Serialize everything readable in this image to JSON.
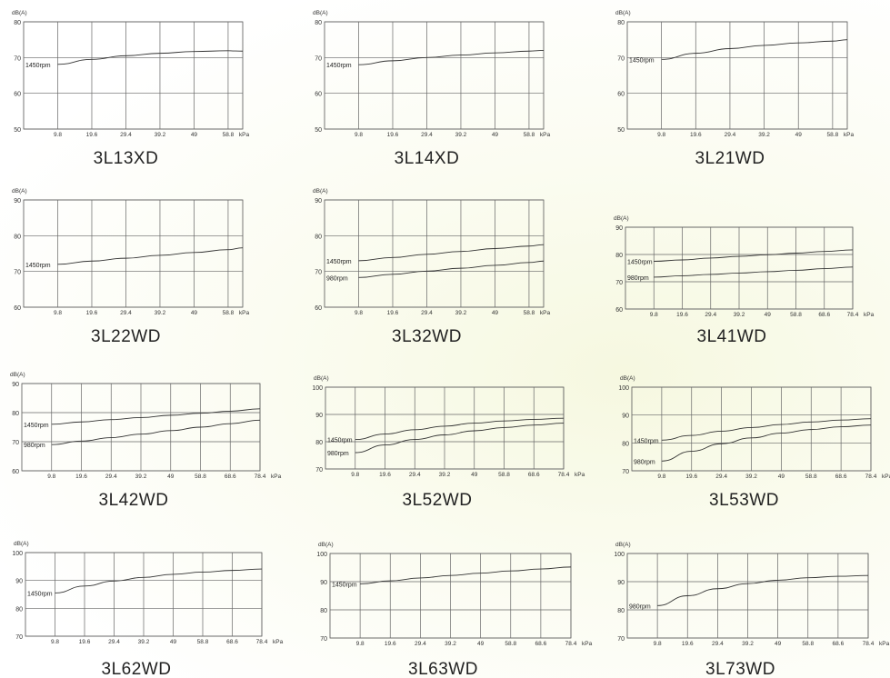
{
  "chart_data": [
    {
      "type": "line",
      "title": "3L13XD",
      "ylabel": "dB(A)",
      "xlabel": "kPa",
      "ylim": [
        50,
        80
      ],
      "yticks": [
        "80",
        "70",
        "60",
        "50"
      ],
      "x": [
        9.8,
        19.6,
        29.4,
        39.2,
        49,
        58.8
      ],
      "xticks": [
        "9.8",
        "19.6",
        "29.4",
        "39.2",
        "49",
        "58.8"
      ],
      "series": [
        {
          "name": "1450rpm",
          "x": [
            9.8,
            19.6,
            29.4,
            39.2,
            49,
            58.8,
            63
          ],
          "values": [
            68.1,
            69.5,
            70.5,
            71.2,
            71.7,
            71.9,
            71.8
          ]
        }
      ]
    },
    {
      "type": "line",
      "title": "3L14XD",
      "ylabel": "dB(A)",
      "xlabel": "kPa",
      "ylim": [
        50,
        80
      ],
      "yticks": [
        "80",
        "70",
        "60",
        "50"
      ],
      "x": [
        9.8,
        19.6,
        29.4,
        39.2,
        49,
        58.8
      ],
      "xticks": [
        "9.8",
        "19.6",
        "29.4",
        "39.2",
        "49",
        "58.8"
      ],
      "series": [
        {
          "name": "1450rpm",
          "x": [
            9.8,
            19.6,
            29.4,
            39.2,
            49,
            58.8,
            63
          ],
          "values": [
            68,
            69.1,
            70,
            70.7,
            71.3,
            71.8,
            72
          ]
        }
      ]
    },
    {
      "type": "line",
      "title": "3L21WD",
      "ylabel": "dB(A)",
      "xlabel": "kPa",
      "ylim": [
        50,
        80
      ],
      "yticks": [
        "80",
        "70",
        "60",
        "50"
      ],
      "x": [
        9.8,
        19.6,
        29.4,
        39.2,
        49,
        58.8
      ],
      "xticks": [
        "9.8",
        "19.6",
        "29.4",
        "39.2",
        "49",
        "58.8"
      ],
      "series": [
        {
          "name": "1450rpm",
          "x": [
            9.8,
            19.6,
            29.4,
            39.2,
            49,
            58.8,
            63
          ],
          "values": [
            69.5,
            71.2,
            72.5,
            73.4,
            74.1,
            74.6,
            75
          ]
        }
      ]
    },
    {
      "type": "line",
      "title": "3L22WD",
      "ylabel": "dB(A)",
      "xlabel": "kPa",
      "ylim": [
        60,
        90
      ],
      "yticks": [
        "90",
        "80",
        "70",
        "60"
      ],
      "x": [
        9.8,
        19.6,
        29.4,
        39.2,
        49,
        58.8
      ],
      "xticks": [
        "9.8",
        "19.6",
        "29.4",
        "39.2",
        "49",
        "58.8"
      ],
      "series": [
        {
          "name": "1450rpm",
          "x": [
            9.8,
            19.6,
            29.4,
            39.2,
            49,
            58.8,
            63
          ],
          "values": [
            72,
            72.9,
            73.7,
            74.5,
            75.3,
            76.1,
            76.6
          ]
        }
      ]
    },
    {
      "type": "line",
      "title": "3L32WD",
      "ylabel": "dB(A)",
      "xlabel": "kPa",
      "ylim": [
        60,
        90
      ],
      "yticks": [
        "90",
        "80",
        "70",
        "60"
      ],
      "x": [
        9.8,
        19.6,
        29.4,
        39.2,
        49,
        58.8
      ],
      "xticks": [
        "9.8",
        "19.6",
        "29.4",
        "39.2",
        "49",
        "58.8"
      ],
      "series": [
        {
          "name": "1450rpm",
          "x": [
            9.8,
            19.6,
            29.4,
            39.2,
            49,
            58.8,
            63
          ],
          "values": [
            73,
            73.9,
            74.8,
            75.6,
            76.4,
            77.1,
            77.5
          ]
        },
        {
          "name": "980rpm",
          "x": [
            9.8,
            19.6,
            29.4,
            39.2,
            49,
            58.8,
            63
          ],
          "values": [
            68.3,
            69.2,
            70.1,
            70.9,
            71.7,
            72.5,
            72.9
          ]
        }
      ]
    },
    {
      "type": "line",
      "title": "3L41WD",
      "ylabel": "dB(A)",
      "xlabel": "kPa",
      "ylim": [
        60,
        90
      ],
      "yticks": [
        "90",
        "80",
        "70",
        "60"
      ],
      "x": [
        9.8,
        19.6,
        29.4,
        39.2,
        49,
        58.8,
        68.6,
        78.4
      ],
      "xticks": [
        "9.8",
        "19.6",
        "29.4",
        "39.2",
        "49",
        "58.8",
        "68.6",
        "78.4"
      ],
      "series": [
        {
          "name": "1450rpm",
          "x": [
            9.8,
            19.6,
            29.4,
            39.2,
            49,
            58.8,
            68.6,
            78.4
          ],
          "values": [
            77.5,
            78,
            78.7,
            79.3,
            79.9,
            80.5,
            81.1,
            81.7
          ]
        },
        {
          "name": "980rpm",
          "x": [
            9.8,
            19.6,
            29.4,
            39.2,
            49,
            58.8,
            68.6,
            78.4
          ],
          "values": [
            71.7,
            72.2,
            72.7,
            73.2,
            73.7,
            74.2,
            74.8,
            75.4
          ]
        }
      ]
    },
    {
      "type": "line",
      "title": "3L42WD",
      "ylabel": "dB(A)",
      "xlabel": "kPa",
      "ylim": [
        60,
        90
      ],
      "yticks": [
        "90",
        "80",
        "70",
        "60"
      ],
      "x": [
        9.8,
        19.6,
        29.4,
        39.2,
        49,
        58.8,
        68.6,
        78.4
      ],
      "xticks": [
        "9.8",
        "19.6",
        "29.4",
        "39.2",
        "49",
        "58.8",
        "68.6",
        "78.4"
      ],
      "series": [
        {
          "name": "1450rpm",
          "x": [
            9.8,
            19.6,
            29.4,
            39.2,
            49,
            58.8,
            68.6,
            78.4
          ],
          "values": [
            76,
            76.8,
            77.6,
            78.3,
            79.1,
            79.8,
            80.5,
            81.3
          ]
        },
        {
          "name": "980rpm",
          "x": [
            9.8,
            19.6,
            29.4,
            39.2,
            49,
            58.8,
            68.6,
            78.4
          ],
          "values": [
            69,
            70.2,
            71.4,
            72.6,
            73.8,
            75,
            76.2,
            77.4
          ]
        }
      ]
    },
    {
      "type": "line",
      "title": "3L52WD",
      "ylabel": "dB(A)",
      "xlabel": "kPa",
      "ylim": [
        70,
        100
      ],
      "yticks": [
        "100",
        "90",
        "80",
        "70"
      ],
      "x": [
        9.8,
        19.6,
        29.4,
        39.2,
        49,
        58.8,
        68.6,
        78.4
      ],
      "xticks": [
        "9.8",
        "19.6",
        "29.4",
        "39.2",
        "49",
        "58.8",
        "68.6",
        "78.4"
      ],
      "series": [
        {
          "name": "1450rpm",
          "x": [
            9.8,
            19.6,
            29.4,
            39.2,
            49,
            58.8,
            68.6,
            78.4
          ],
          "values": [
            80.8,
            82.8,
            84.4,
            85.7,
            86.8,
            87.6,
            88.2,
            88.6
          ]
        },
        {
          "name": "980rpm",
          "x": [
            9.8,
            19.6,
            29.4,
            39.2,
            49,
            58.8,
            68.6,
            78.4
          ],
          "values": [
            76,
            78.8,
            80.8,
            82.5,
            84,
            85.2,
            86.1,
            86.8
          ]
        }
      ]
    },
    {
      "type": "line",
      "title": "3L53WD",
      "ylabel": "dB(A)",
      "xlabel": "kPa",
      "ylim": [
        70,
        100
      ],
      "yticks": [
        "100",
        "90",
        "80",
        "70"
      ],
      "x": [
        9.8,
        19.6,
        29.4,
        39.2,
        49,
        58.8,
        68.6,
        78.4
      ],
      "xticks": [
        "9.8",
        "19.6",
        "29.4",
        "39.2",
        "49",
        "58.8",
        "68.6",
        "78.4"
      ],
      "series": [
        {
          "name": "1450rpm",
          "x": [
            9.8,
            19.6,
            29.4,
            39.2,
            49,
            58.8,
            68.6,
            78.4
          ],
          "values": [
            81,
            82.7,
            84.2,
            85.5,
            86.6,
            87.5,
            88.2,
            88.7
          ]
        },
        {
          "name": "980rpm",
          "x": [
            9.8,
            19.6,
            29.4,
            39.2,
            49,
            58.8,
            68.6,
            78.4
          ],
          "values": [
            73.5,
            77,
            79.7,
            81.8,
            83.5,
            84.8,
            85.8,
            86.4
          ]
        }
      ]
    },
    {
      "type": "line",
      "title": "3L62WD",
      "ylabel": "dB(A)",
      "xlabel": "kPa",
      "ylim": [
        70,
        100
      ],
      "yticks": [
        "100",
        "90",
        "80",
        "70"
      ],
      "x": [
        9.8,
        19.6,
        29.4,
        39.2,
        49,
        58.8,
        68.6,
        78.4
      ],
      "xticks": [
        "9.8",
        "19.6",
        "29.4",
        "39.2",
        "49",
        "58.8",
        "68.6",
        "78.4"
      ],
      "series": [
        {
          "name": "1450rpm",
          "x": [
            9.8,
            19.6,
            29.4,
            39.2,
            49,
            58.8,
            68.6,
            78.4
          ],
          "values": [
            85.5,
            88,
            89.8,
            91.1,
            92.2,
            93,
            93.6,
            94.1
          ]
        }
      ]
    },
    {
      "type": "line",
      "title": "3L63WD",
      "ylabel": "dB(A)",
      "xlabel": "kPa",
      "ylim": [
        70,
        100
      ],
      "yticks": [
        "100",
        "90",
        "80",
        "70"
      ],
      "x": [
        9.8,
        19.6,
        29.4,
        39.2,
        49,
        58.8,
        68.6,
        78.4
      ],
      "xticks": [
        "9.8",
        "19.6",
        "29.4",
        "39.2",
        "49",
        "58.8",
        "68.6",
        "78.4"
      ],
      "series": [
        {
          "name": "1450rpm",
          "x": [
            9.8,
            19.6,
            29.4,
            39.2,
            49,
            58.8,
            68.6,
            78.4
          ],
          "values": [
            89.2,
            90.3,
            91.3,
            92.2,
            93,
            93.8,
            94.5,
            95.2
          ]
        }
      ]
    },
    {
      "type": "line",
      "title": "3L73WD",
      "ylabel": "dB(A)",
      "xlabel": "kPa",
      "ylim": [
        70,
        100
      ],
      "yticks": [
        "100",
        "90",
        "80",
        "70"
      ],
      "x": [
        9.8,
        19.6,
        29.4,
        39.2,
        49,
        58.8,
        68.6,
        78.4
      ],
      "xticks": [
        "9.8",
        "19.6",
        "29.4",
        "39.2",
        "49",
        "58.8",
        "68.6",
        "78.4"
      ],
      "series": [
        {
          "name": "980rpm",
          "x": [
            9.8,
            19.6,
            29.4,
            39.2,
            49,
            58.8,
            68.6,
            78.4
          ],
          "values": [
            81.5,
            85,
            87.5,
            89.3,
            90.5,
            91.4,
            91.9,
            92.2
          ]
        }
      ]
    }
  ]
}
